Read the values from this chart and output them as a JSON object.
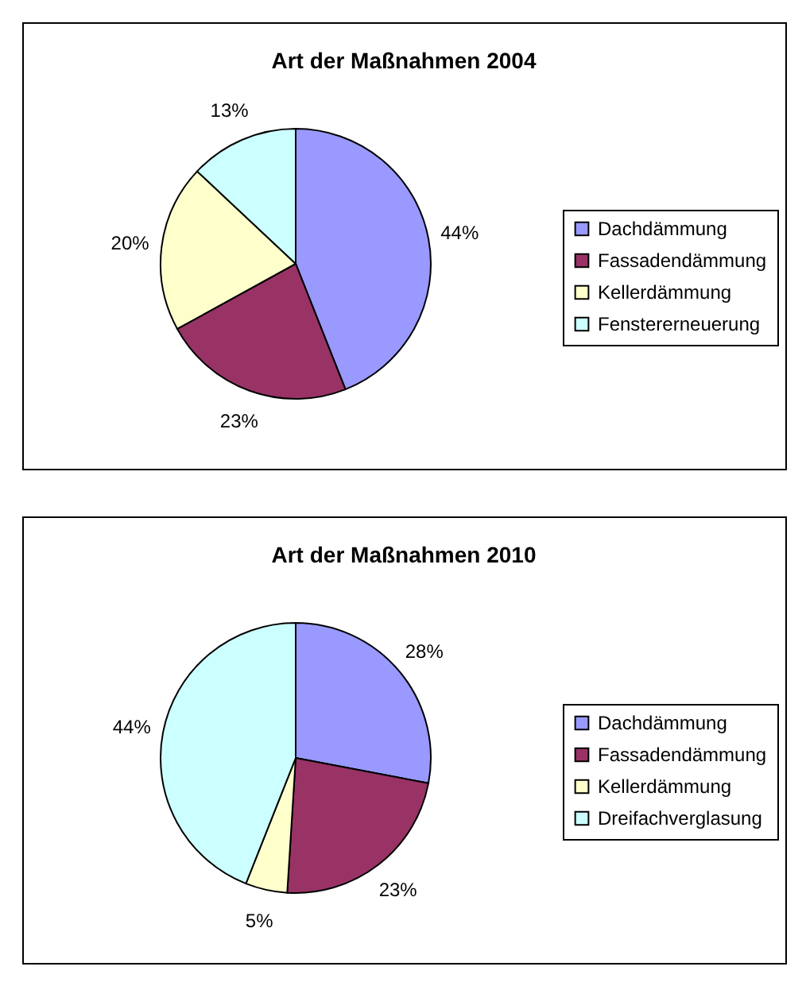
{
  "chart_data": [
    {
      "type": "pie",
      "title": "Art der Maßnahmen 2004",
      "categories": [
        "Dachdämmung",
        "Fassadendämmung",
        "Kellerdämmung",
        "Fenstererneuerung"
      ],
      "values": [
        44,
        23,
        20,
        13
      ],
      "colors": [
        "#9999ff",
        "#993366",
        "#ffffcc",
        "#ccffff"
      ],
      "value_labels": [
        "44%",
        "23%",
        "20%",
        "13%"
      ],
      "legend": "right"
    },
    {
      "type": "pie",
      "title": "Art der Maßnahmen 2010",
      "categories": [
        "Dachdämmung",
        "Fassadendämmung",
        "Kellerdämmung",
        "Dreifachverglasung"
      ],
      "values": [
        28,
        23,
        5,
        44
      ],
      "colors": [
        "#9999ff",
        "#993366",
        "#ffffcc",
        "#ccffff"
      ],
      "value_labels": [
        "28%",
        "23%",
        "5%",
        "44%"
      ],
      "legend": "right"
    }
  ]
}
